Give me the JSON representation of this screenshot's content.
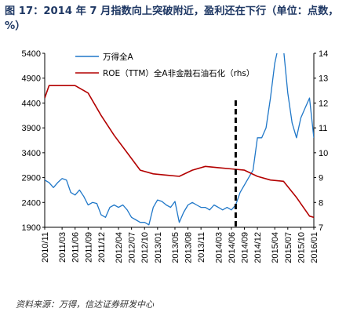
{
  "figure_title": "图 17：2014 年 7 月指数向上突破附近，盈利还在下行（单位：点数，%）",
  "source_note": "资料来源：万得，信达证券研发中心",
  "colors": {
    "index_line": "#1f77c8",
    "roe_line": "#b30000",
    "marker_line": "#000000",
    "title": "#1f3864"
  },
  "chart_data": {
    "type": "line",
    "title": "",
    "ylim_left": [
      1900,
      5400
    ],
    "ylim_right": [
      7,
      14
    ],
    "y_ticks_left": [
      1900,
      2400,
      2900,
      3400,
      3900,
      4400,
      4900,
      5400
    ],
    "y_ticks_right": [
      7,
      8,
      9,
      10,
      11,
      12,
      13,
      14
    ],
    "x_ticks": [
      "2010/11",
      "2011/03",
      "2011/06",
      "2011/09",
      "2011/12",
      "2012/04",
      "2012/07",
      "2012/10",
      "2013/01",
      "2013/05",
      "2013/08",
      "2013/11",
      "2014/03",
      "2014/06",
      "2014/09",
      "2014/12",
      "2015/04",
      "2015/07",
      "2015/10",
      "2016/01"
    ],
    "legend_position": "top-center",
    "vertical_marker": {
      "x": "2014/07",
      "style": "dashed"
    },
    "series": [
      {
        "name": "万得全A",
        "axis": "left",
        "x": [
          "2010/11",
          "2010/12",
          "2011/01",
          "2011/02",
          "2011/03",
          "2011/04",
          "2011/05",
          "2011/06",
          "2011/07",
          "2011/08",
          "2011/09",
          "2011/10",
          "2011/11",
          "2011/12",
          "2012/01",
          "2012/02",
          "2012/03",
          "2012/04",
          "2012/05",
          "2012/06",
          "2012/07",
          "2012/08",
          "2012/09",
          "2012/10",
          "2012/11",
          "2012/12",
          "2013/01",
          "2013/02",
          "2013/03",
          "2013/04",
          "2013/05",
          "2013/06",
          "2013/07",
          "2013/08",
          "2013/09",
          "2013/10",
          "2013/11",
          "2013/12",
          "2014/01",
          "2014/02",
          "2014/03",
          "2014/04",
          "2014/05",
          "2014/06",
          "2014/07",
          "2014/08",
          "2014/09",
          "2014/10",
          "2014/11",
          "2014/12",
          "2015/01",
          "2015/02",
          "2015/03",
          "2015/04",
          "2015/05",
          "2015/06",
          "2015/07",
          "2015/08",
          "2015/09",
          "2015/10",
          "2015/11",
          "2015/12",
          "2016/01"
        ],
        "values": [
          2850,
          2800,
          2700,
          2800,
          2880,
          2850,
          2600,
          2550,
          2650,
          2520,
          2350,
          2400,
          2380,
          2150,
          2100,
          2300,
          2350,
          2300,
          2350,
          2250,
          2100,
          2050,
          2000,
          2000,
          1950,
          2300,
          2450,
          2420,
          2350,
          2300,
          2420,
          2000,
          2200,
          2350,
          2400,
          2350,
          2300,
          2300,
          2250,
          2350,
          2300,
          2250,
          2300,
          2250,
          2350,
          2600,
          2750,
          2900,
          3050,
          3700,
          3700,
          3900,
          4500,
          5200,
          5600,
          5500,
          4600,
          4000,
          3700,
          4100,
          4300,
          4500,
          3700
        ]
      },
      {
        "name": "ROE（TTM）全A非金融石油石化（rhs）",
        "axis": "right",
        "x": [
          "2010/11",
          "2010/12",
          "2011/03",
          "2011/06",
          "2011/09",
          "2011/12",
          "2012/03",
          "2012/06",
          "2012/09",
          "2012/12",
          "2013/03",
          "2013/06",
          "2013/09",
          "2013/12",
          "2014/03",
          "2014/06",
          "2014/09",
          "2014/12",
          "2015/03",
          "2015/06",
          "2015/09",
          "2015/12",
          "2016/01"
        ],
        "values": [
          12.2,
          12.7,
          12.7,
          12.7,
          12.4,
          11.5,
          10.7,
          10.0,
          9.3,
          9.15,
          9.1,
          9.05,
          9.3,
          9.45,
          9.4,
          9.35,
          9.3,
          9.05,
          8.9,
          8.85,
          8.2,
          7.45,
          7.4
        ]
      }
    ]
  }
}
